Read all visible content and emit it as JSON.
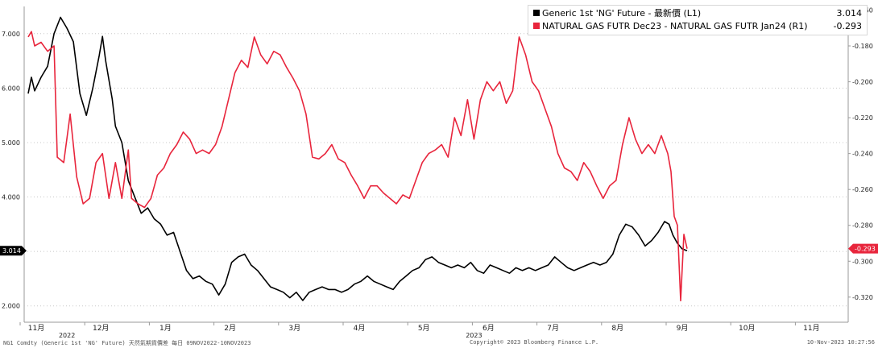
{
  "legend": [
    {
      "name": "Generic 1st 'NG' Future - 最新價 (L1)",
      "value": "3.014",
      "color": "#000000"
    },
    {
      "name": "NATURAL GAS FUTR Dec23 - NATURAL GAS FUTR Jan24 (R1)",
      "value": "-0.293",
      "color": "#e8253c"
    }
  ],
  "footer": {
    "left": "NG1 Comdty (Generic 1st 'NG' Future) 天然氣期貨價差 每日 09NOV2022-10NOV2023",
    "center": "Copyright© 2023 Bloomberg Finance L.P.",
    "right": "10-Nov-2023 10:27:56"
  },
  "chart_data": {
    "type": "line",
    "x_ticks": [
      "11月",
      "12月",
      "1月",
      "2月",
      "3月",
      "4月",
      "5月",
      "6月",
      "7月",
      "8月",
      "9月",
      "10月",
      "11月"
    ],
    "year_labels": [
      "2022",
      "2023"
    ],
    "left_axis": {
      "ticks": [
        "2.000",
        "3.000",
        "4.000",
        "5.000",
        "6.000",
        "7.000"
      ],
      "range": [
        1.7,
        7.5
      ],
      "last_value": "3.014"
    },
    "right_axis": {
      "ticks": [
        "-0.320",
        "-0.300",
        "-0.280",
        "-0.260",
        "-0.240",
        "-0.220",
        "-0.200",
        "-0.180",
        "-0.160"
      ],
      "range": [
        -0.334,
        -0.158
      ],
      "last_value": "-0.293"
    },
    "series": [
      {
        "name": "Generic 1st 'NG' Future - 最新價 (L1)",
        "axis": "left",
        "color": "#000000",
        "points": [
          [
            0.0,
            5.9
          ],
          [
            0.05,
            6.2
          ],
          [
            0.1,
            5.95
          ],
          [
            0.2,
            6.2
          ],
          [
            0.3,
            6.4
          ],
          [
            0.4,
            7.0
          ],
          [
            0.5,
            7.3
          ],
          [
            0.6,
            7.1
          ],
          [
            0.7,
            6.85
          ],
          [
            0.8,
            5.9
          ],
          [
            0.9,
            5.5
          ],
          [
            1.0,
            6.0
          ],
          [
            1.1,
            6.6
          ],
          [
            1.15,
            6.95
          ],
          [
            1.2,
            6.5
          ],
          [
            1.3,
            5.8
          ],
          [
            1.35,
            5.3
          ],
          [
            1.45,
            5.0
          ],
          [
            1.55,
            4.3
          ],
          [
            1.65,
            4.0
          ],
          [
            1.75,
            3.7
          ],
          [
            1.85,
            3.8
          ],
          [
            1.95,
            3.6
          ],
          [
            2.05,
            3.5
          ],
          [
            2.15,
            3.3
          ],
          [
            2.25,
            3.35
          ],
          [
            2.35,
            3.0
          ],
          [
            2.45,
            2.65
          ],
          [
            2.55,
            2.5
          ],
          [
            2.65,
            2.55
          ],
          [
            2.75,
            2.45
          ],
          [
            2.85,
            2.4
          ],
          [
            2.95,
            2.2
          ],
          [
            3.05,
            2.4
          ],
          [
            3.15,
            2.8
          ],
          [
            3.25,
            2.9
          ],
          [
            3.35,
            2.95
          ],
          [
            3.45,
            2.75
          ],
          [
            3.55,
            2.65
          ],
          [
            3.65,
            2.5
          ],
          [
            3.75,
            2.35
          ],
          [
            3.85,
            2.3
          ],
          [
            3.95,
            2.25
          ],
          [
            4.05,
            2.15
          ],
          [
            4.15,
            2.25
          ],
          [
            4.25,
            2.1
          ],
          [
            4.35,
            2.25
          ],
          [
            4.45,
            2.3
          ],
          [
            4.55,
            2.35
          ],
          [
            4.65,
            2.3
          ],
          [
            4.75,
            2.3
          ],
          [
            4.85,
            2.25
          ],
          [
            4.95,
            2.3
          ],
          [
            5.05,
            2.4
          ],
          [
            5.15,
            2.45
          ],
          [
            5.25,
            2.55
          ],
          [
            5.35,
            2.45
          ],
          [
            5.45,
            2.4
          ],
          [
            5.55,
            2.35
          ],
          [
            5.65,
            2.3
          ],
          [
            5.75,
            2.45
          ],
          [
            5.85,
            2.55
          ],
          [
            5.95,
            2.65
          ],
          [
            6.05,
            2.7
          ],
          [
            6.15,
            2.85
          ],
          [
            6.25,
            2.9
          ],
          [
            6.35,
            2.8
          ],
          [
            6.45,
            2.75
          ],
          [
            6.55,
            2.7
          ],
          [
            6.65,
            2.75
          ],
          [
            6.75,
            2.7
          ],
          [
            6.85,
            2.8
          ],
          [
            6.95,
            2.65
          ],
          [
            7.05,
            2.6
          ],
          [
            7.15,
            2.75
          ],
          [
            7.25,
            2.7
          ],
          [
            7.35,
            2.65
          ],
          [
            7.45,
            2.6
          ],
          [
            7.55,
            2.7
          ],
          [
            7.65,
            2.65
          ],
          [
            7.75,
            2.7
          ],
          [
            7.85,
            2.65
          ],
          [
            7.95,
            2.7
          ],
          [
            8.05,
            2.75
          ],
          [
            8.15,
            2.9
          ],
          [
            8.25,
            2.8
          ],
          [
            8.35,
            2.7
          ],
          [
            8.45,
            2.65
          ],
          [
            8.55,
            2.7
          ],
          [
            8.65,
            2.75
          ],
          [
            8.75,
            2.8
          ],
          [
            8.85,
            2.75
          ],
          [
            8.95,
            2.8
          ],
          [
            9.05,
            2.95
          ],
          [
            9.15,
            3.3
          ],
          [
            9.25,
            3.5
          ],
          [
            9.35,
            3.45
          ],
          [
            9.45,
            3.3
          ],
          [
            9.55,
            3.1
          ],
          [
            9.65,
            3.2
          ],
          [
            9.75,
            3.35
          ],
          [
            9.85,
            3.55
          ],
          [
            9.92,
            3.5
          ],
          [
            9.98,
            3.3
          ],
          [
            10.05,
            3.15
          ],
          [
            10.12,
            3.05
          ],
          [
            10.2,
            3.014
          ]
        ]
      },
      {
        "name": "NATURAL GAS FUTR Dec23 - NATURAL GAS FUTR Jan24 (R1)",
        "axis": "right",
        "color": "#e8253c",
        "points": [
          [
            0.0,
            -0.175
          ],
          [
            0.05,
            -0.172
          ],
          [
            0.1,
            -0.18
          ],
          [
            0.2,
            -0.178
          ],
          [
            0.3,
            -0.183
          ],
          [
            0.4,
            -0.18
          ],
          [
            0.45,
            -0.242
          ],
          [
            0.55,
            -0.245
          ],
          [
            0.65,
            -0.218
          ],
          [
            0.75,
            -0.253
          ],
          [
            0.85,
            -0.268
          ],
          [
            0.95,
            -0.265
          ],
          [
            1.05,
            -0.245
          ],
          [
            1.15,
            -0.24
          ],
          [
            1.25,
            -0.265
          ],
          [
            1.35,
            -0.245
          ],
          [
            1.45,
            -0.265
          ],
          [
            1.55,
            -0.238
          ],
          [
            1.6,
            -0.265
          ],
          [
            1.7,
            -0.268
          ],
          [
            1.8,
            -0.27
          ],
          [
            1.9,
            -0.265
          ],
          [
            2.0,
            -0.252
          ],
          [
            2.1,
            -0.248
          ],
          [
            2.2,
            -0.24
          ],
          [
            2.3,
            -0.235
          ],
          [
            2.4,
            -0.228
          ],
          [
            2.5,
            -0.232
          ],
          [
            2.6,
            -0.24
          ],
          [
            2.7,
            -0.238
          ],
          [
            2.8,
            -0.24
          ],
          [
            2.9,
            -0.235
          ],
          [
            3.0,
            -0.225
          ],
          [
            3.1,
            -0.21
          ],
          [
            3.2,
            -0.195
          ],
          [
            3.3,
            -0.188
          ],
          [
            3.4,
            -0.192
          ],
          [
            3.5,
            -0.175
          ],
          [
            3.6,
            -0.185
          ],
          [
            3.7,
            -0.19
          ],
          [
            3.8,
            -0.183
          ],
          [
            3.9,
            -0.185
          ],
          [
            4.0,
            -0.192
          ],
          [
            4.1,
            -0.198
          ],
          [
            4.2,
            -0.205
          ],
          [
            4.3,
            -0.218
          ],
          [
            4.4,
            -0.242
          ],
          [
            4.5,
            -0.243
          ],
          [
            4.6,
            -0.24
          ],
          [
            4.7,
            -0.235
          ],
          [
            4.8,
            -0.243
          ],
          [
            4.9,
            -0.245
          ],
          [
            5.0,
            -0.252
          ],
          [
            5.1,
            -0.258
          ],
          [
            5.2,
            -0.265
          ],
          [
            5.3,
            -0.258
          ],
          [
            5.4,
            -0.258
          ],
          [
            5.5,
            -0.262
          ],
          [
            5.6,
            -0.265
          ],
          [
            5.7,
            -0.268
          ],
          [
            5.8,
            -0.263
          ],
          [
            5.9,
            -0.265
          ],
          [
            6.0,
            -0.255
          ],
          [
            6.1,
            -0.245
          ],
          [
            6.2,
            -0.24
          ],
          [
            6.3,
            -0.238
          ],
          [
            6.4,
            -0.235
          ],
          [
            6.5,
            -0.242
          ],
          [
            6.6,
            -0.22
          ],
          [
            6.7,
            -0.23
          ],
          [
            6.8,
            -0.21
          ],
          [
            6.9,
            -0.232
          ],
          [
            7.0,
            -0.21
          ],
          [
            7.1,
            -0.2
          ],
          [
            7.2,
            -0.205
          ],
          [
            7.3,
            -0.2
          ],
          [
            7.4,
            -0.212
          ],
          [
            7.5,
            -0.205
          ],
          [
            7.6,
            -0.175
          ],
          [
            7.7,
            -0.185
          ],
          [
            7.8,
            -0.2
          ],
          [
            7.9,
            -0.205
          ],
          [
            8.0,
            -0.215
          ],
          [
            8.1,
            -0.225
          ],
          [
            8.2,
            -0.24
          ],
          [
            8.3,
            -0.248
          ],
          [
            8.4,
            -0.25
          ],
          [
            8.5,
            -0.255
          ],
          [
            8.6,
            -0.245
          ],
          [
            8.7,
            -0.25
          ],
          [
            8.8,
            -0.258
          ],
          [
            8.9,
            -0.265
          ],
          [
            9.0,
            -0.258
          ],
          [
            9.1,
            -0.255
          ],
          [
            9.2,
            -0.235
          ],
          [
            9.3,
            -0.22
          ],
          [
            9.4,
            -0.232
          ],
          [
            9.5,
            -0.24
          ],
          [
            9.6,
            -0.235
          ],
          [
            9.7,
            -0.24
          ],
          [
            9.8,
            -0.23
          ],
          [
            9.9,
            -0.24
          ],
          [
            9.95,
            -0.25
          ],
          [
            10.0,
            -0.275
          ],
          [
            10.05,
            -0.28
          ],
          [
            10.1,
            -0.322
          ],
          [
            10.15,
            -0.285
          ],
          [
            10.2,
            -0.293
          ]
        ]
      }
    ]
  }
}
